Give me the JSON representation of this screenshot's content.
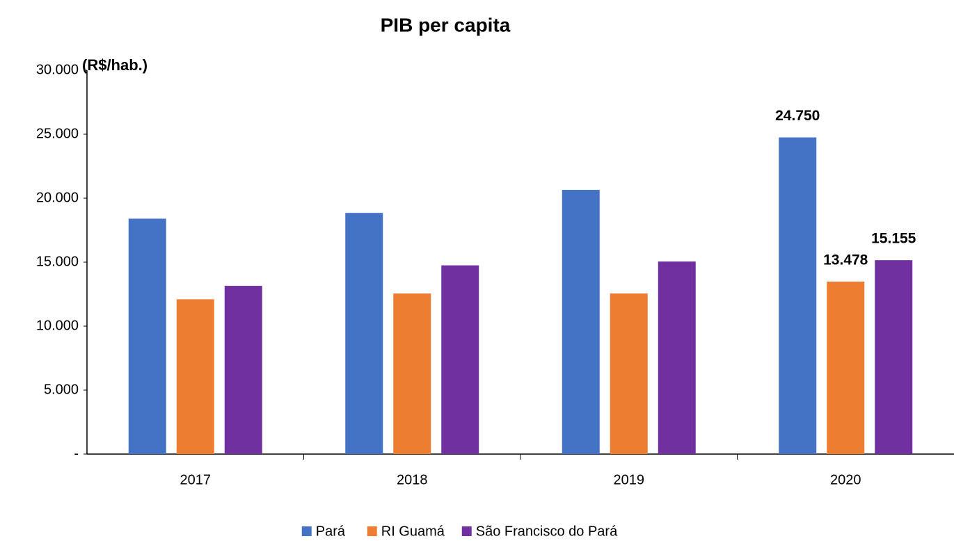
{
  "chart_data": {
    "type": "bar",
    "title": "PIB per capita",
    "y_label": "(R$/hab.)",
    "categories": [
      "2017",
      "2018",
      "2019",
      "2020"
    ],
    "series": [
      {
        "name": "Pará",
        "color": "#4472c4",
        "values": [
          18400,
          18850,
          20650,
          24750
        ],
        "value_labels": [
          null,
          null,
          null,
          "24.750"
        ]
      },
      {
        "name": "RI Guamá",
        "color": "#ed7d31",
        "values": [
          12100,
          12550,
          12550,
          13478
        ],
        "value_labels": [
          null,
          null,
          null,
          "13.478"
        ]
      },
      {
        "name": "São Francisco do Pará",
        "color": "#7030a0",
        "values": [
          13150,
          14750,
          15050,
          15155
        ],
        "value_labels": [
          null,
          null,
          null,
          "15.155"
        ]
      }
    ],
    "ylim": [
      0,
      30000
    ],
    "yticks": [
      {
        "value": 0,
        "label": "-"
      },
      {
        "value": 5000,
        "label": "5.000"
      },
      {
        "value": 10000,
        "label": "10.000"
      },
      {
        "value": 15000,
        "label": "15.000"
      },
      {
        "value": 20000,
        "label": "20.000"
      },
      {
        "value": 25000,
        "label": "25.000"
      },
      {
        "value": 30000,
        "label": "30.000"
      }
    ],
    "grid": false,
    "legend": "bottom"
  }
}
